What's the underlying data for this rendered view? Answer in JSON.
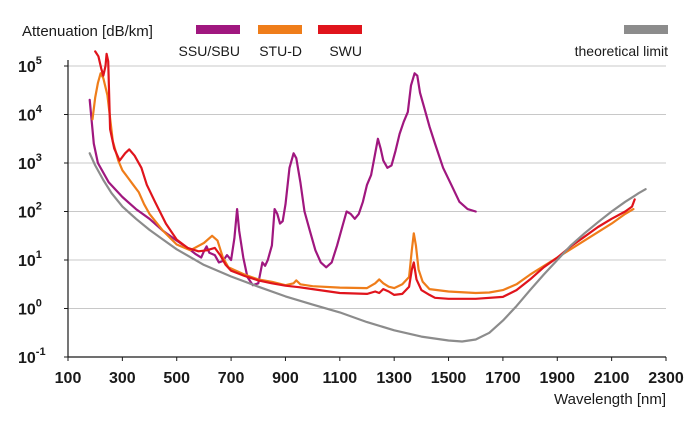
{
  "chart_data": {
    "type": "line",
    "ylabel": "Attenuation [dB/km]",
    "xlabel": "Wavelength [nm]",
    "y_scale": "log",
    "xlim": [
      100,
      2300
    ],
    "ylim_exponent": [
      -1,
      5
    ],
    "x_ticks": [
      "100",
      "300",
      "500",
      "700",
      "900",
      "1100",
      "1300",
      "1500",
      "1700",
      "1900",
      "2100",
      "2300"
    ],
    "y_ticks": [
      {
        "base": "10",
        "exp": "-1"
      },
      {
        "base": "10",
        "exp": "0"
      },
      {
        "base": "10",
        "exp": "1"
      },
      {
        "base": "10",
        "exp": "2"
      },
      {
        "base": "10",
        "exp": "3"
      },
      {
        "base": "10",
        "exp": "4"
      },
      {
        "base": "10",
        "exp": "5"
      }
    ],
    "grid": "horizontal",
    "legend_position": "top",
    "series": [
      {
        "name": "SSU/SBU",
        "color": "#a0177f",
        "points": [
          [
            180,
            4.3
          ],
          [
            195,
            3.4
          ],
          [
            210,
            3.0
          ],
          [
            250,
            2.6
          ],
          [
            300,
            2.3
          ],
          [
            350,
            2.05
          ],
          [
            400,
            1.85
          ],
          [
            450,
            1.6
          ],
          [
            500,
            1.4
          ],
          [
            540,
            1.25
          ],
          [
            570,
            1.12
          ],
          [
            590,
            1.05
          ],
          [
            600,
            1.18
          ],
          [
            610,
            1.28
          ],
          [
            620,
            1.15
          ],
          [
            640,
            1.1
          ],
          [
            655,
            0.95
          ],
          [
            670,
            0.98
          ],
          [
            685,
            1.1
          ],
          [
            700,
            1.0
          ],
          [
            712,
            1.45
          ],
          [
            722,
            2.05
          ],
          [
            730,
            1.6
          ],
          [
            745,
            1.05
          ],
          [
            760,
            0.65
          ],
          [
            780,
            0.48
          ],
          [
            800,
            0.52
          ],
          [
            815,
            0.95
          ],
          [
            825,
            0.88
          ],
          [
            835,
            1.0
          ],
          [
            850,
            1.3
          ],
          [
            860,
            2.05
          ],
          [
            870,
            1.95
          ],
          [
            880,
            1.75
          ],
          [
            890,
            1.8
          ],
          [
            900,
            2.15
          ],
          [
            915,
            2.9
          ],
          [
            930,
            3.2
          ],
          [
            940,
            3.1
          ],
          [
            955,
            2.6
          ],
          [
            970,
            2.0
          ],
          [
            990,
            1.6
          ],
          [
            1010,
            1.2
          ],
          [
            1030,
            0.95
          ],
          [
            1050,
            0.85
          ],
          [
            1070,
            0.95
          ],
          [
            1090,
            1.3
          ],
          [
            1110,
            1.7
          ],
          [
            1125,
            2.0
          ],
          [
            1140,
            1.95
          ],
          [
            1155,
            1.85
          ],
          [
            1170,
            1.95
          ],
          [
            1185,
            2.2
          ],
          [
            1200,
            2.55
          ],
          [
            1215,
            2.75
          ],
          [
            1230,
            3.2
          ],
          [
            1240,
            3.5
          ],
          [
            1250,
            3.3
          ],
          [
            1260,
            3.05
          ],
          [
            1275,
            2.9
          ],
          [
            1290,
            2.95
          ],
          [
            1305,
            3.25
          ],
          [
            1320,
            3.6
          ],
          [
            1335,
            3.85
          ],
          [
            1350,
            4.05
          ],
          [
            1362,
            4.6
          ],
          [
            1375,
            4.85
          ],
          [
            1385,
            4.8
          ],
          [
            1395,
            4.45
          ],
          [
            1410,
            4.15
          ],
          [
            1430,
            3.75
          ],
          [
            1450,
            3.4
          ],
          [
            1480,
            2.9
          ],
          [
            1510,
            2.55
          ],
          [
            1540,
            2.2
          ],
          [
            1570,
            2.05
          ],
          [
            1600,
            2.0
          ]
        ]
      },
      {
        "name": "STU-D",
        "color": "#ef7d1a",
        "points": [
          [
            190,
            3.9
          ],
          [
            200,
            4.35
          ],
          [
            210,
            4.65
          ],
          [
            220,
            4.85
          ],
          [
            230,
            4.75
          ],
          [
            245,
            4.4
          ],
          [
            265,
            3.45
          ],
          [
            285,
            3.05
          ],
          [
            300,
            2.85
          ],
          [
            320,
            2.7
          ],
          [
            340,
            2.55
          ],
          [
            360,
            2.4
          ],
          [
            380,
            2.15
          ],
          [
            400,
            1.95
          ],
          [
            450,
            1.6
          ],
          [
            500,
            1.32
          ],
          [
            550,
            1.2
          ],
          [
            600,
            1.35
          ],
          [
            630,
            1.5
          ],
          [
            650,
            1.4
          ],
          [
            670,
            1.05
          ],
          [
            690,
            0.85
          ],
          [
            710,
            0.8
          ],
          [
            750,
            0.7
          ],
          [
            800,
            0.6
          ],
          [
            850,
            0.55
          ],
          [
            900,
            0.48
          ],
          [
            930,
            0.52
          ],
          [
            940,
            0.58
          ],
          [
            955,
            0.5
          ],
          [
            1000,
            0.46
          ],
          [
            1100,
            0.43
          ],
          [
            1200,
            0.42
          ],
          [
            1230,
            0.52
          ],
          [
            1245,
            0.6
          ],
          [
            1260,
            0.52
          ],
          [
            1280,
            0.45
          ],
          [
            1300,
            0.42
          ],
          [
            1330,
            0.5
          ],
          [
            1355,
            0.65
          ],
          [
            1365,
            1.2
          ],
          [
            1372,
            1.55
          ],
          [
            1380,
            1.3
          ],
          [
            1390,
            0.8
          ],
          [
            1405,
            0.55
          ],
          [
            1430,
            0.4
          ],
          [
            1500,
            0.35
          ],
          [
            1600,
            0.32
          ],
          [
            1650,
            0.33
          ],
          [
            1700,
            0.38
          ],
          [
            1750,
            0.5
          ],
          [
            1800,
            0.7
          ],
          [
            1900,
            1.05
          ],
          [
            2000,
            1.4
          ],
          [
            2100,
            1.75
          ],
          [
            2150,
            1.95
          ],
          [
            2180,
            2.05
          ]
        ]
      },
      {
        "name": "SWU",
        "color": "#e0141c",
        "points": [
          [
            200,
            5.3
          ],
          [
            212,
            5.2
          ],
          [
            222,
            4.95
          ],
          [
            230,
            4.8
          ],
          [
            238,
            5.0
          ],
          [
            242,
            5.25
          ],
          [
            248,
            5.1
          ],
          [
            255,
            3.7
          ],
          [
            270,
            3.3
          ],
          [
            290,
            3.05
          ],
          [
            310,
            3.2
          ],
          [
            325,
            3.28
          ],
          [
            345,
            3.15
          ],
          [
            370,
            2.9
          ],
          [
            390,
            2.55
          ],
          [
            420,
            2.2
          ],
          [
            460,
            1.75
          ],
          [
            500,
            1.42
          ],
          [
            540,
            1.25
          ],
          [
            580,
            1.18
          ],
          [
            610,
            1.2
          ],
          [
            640,
            1.25
          ],
          [
            660,
            1.1
          ],
          [
            680,
            0.9
          ],
          [
            700,
            0.78
          ],
          [
            750,
            0.67
          ],
          [
            800,
            0.58
          ],
          [
            850,
            0.52
          ],
          [
            900,
            0.47
          ],
          [
            950,
            0.44
          ],
          [
            1000,
            0.4
          ],
          [
            1100,
            0.32
          ],
          [
            1200,
            0.3
          ],
          [
            1230,
            0.35
          ],
          [
            1245,
            0.32
          ],
          [
            1260,
            0.4
          ],
          [
            1280,
            0.35
          ],
          [
            1300,
            0.28
          ],
          [
            1330,
            0.3
          ],
          [
            1355,
            0.45
          ],
          [
            1365,
            0.8
          ],
          [
            1372,
            0.95
          ],
          [
            1382,
            0.6
          ],
          [
            1400,
            0.38
          ],
          [
            1430,
            0.28
          ],
          [
            1450,
            0.22
          ],
          [
            1500,
            0.2
          ],
          [
            1600,
            0.2
          ],
          [
            1700,
            0.24
          ],
          [
            1750,
            0.38
          ],
          [
            1800,
            0.6
          ],
          [
            1850,
            0.85
          ],
          [
            1900,
            1.05
          ],
          [
            1950,
            1.28
          ],
          [
            2000,
            1.48
          ],
          [
            2050,
            1.68
          ],
          [
            2100,
            1.85
          ],
          [
            2150,
            2.0
          ],
          [
            2175,
            2.1
          ],
          [
            2185,
            2.25
          ]
        ]
      },
      {
        "name": "theoretical limit",
        "color": "#8c8c8c",
        "points": [
          [
            180,
            3.2
          ],
          [
            200,
            2.95
          ],
          [
            230,
            2.65
          ],
          [
            260,
            2.38
          ],
          [
            300,
            2.1
          ],
          [
            350,
            1.85
          ],
          [
            400,
            1.62
          ],
          [
            450,
            1.42
          ],
          [
            500,
            1.22
          ],
          [
            600,
            0.9
          ],
          [
            700,
            0.66
          ],
          [
            800,
            0.45
          ],
          [
            900,
            0.25
          ],
          [
            1000,
            0.08
          ],
          [
            1100,
            -0.08
          ],
          [
            1200,
            -0.28
          ],
          [
            1300,
            -0.45
          ],
          [
            1400,
            -0.58
          ],
          [
            1500,
            -0.66
          ],
          [
            1550,
            -0.68
          ],
          [
            1600,
            -0.64
          ],
          [
            1650,
            -0.5
          ],
          [
            1700,
            -0.25
          ],
          [
            1750,
            0.05
          ],
          [
            1800,
            0.38
          ],
          [
            1850,
            0.7
          ],
          [
            1900,
            1.0
          ],
          [
            1950,
            1.3
          ],
          [
            2000,
            1.55
          ],
          [
            2050,
            1.78
          ],
          [
            2100,
            2.0
          ],
          [
            2150,
            2.2
          ],
          [
            2200,
            2.38
          ],
          [
            2225,
            2.46
          ]
        ]
      }
    ]
  }
}
